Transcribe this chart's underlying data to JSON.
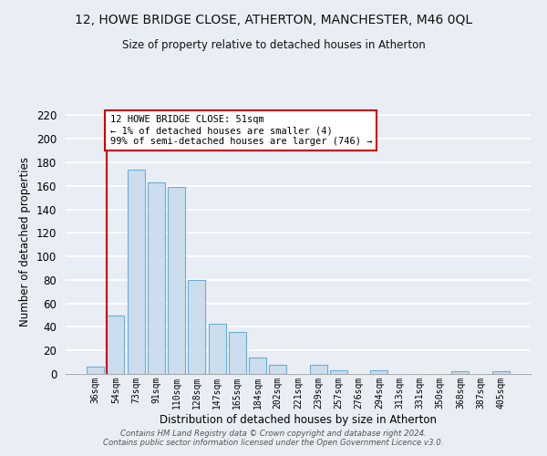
{
  "title": "12, HOWE BRIDGE CLOSE, ATHERTON, MANCHESTER, M46 0QL",
  "subtitle": "Size of property relative to detached houses in Atherton",
  "xlabel": "Distribution of detached houses by size in Atherton",
  "ylabel": "Number of detached properties",
  "bar_labels": [
    "36sqm",
    "54sqm",
    "73sqm",
    "91sqm",
    "110sqm",
    "128sqm",
    "147sqm",
    "165sqm",
    "184sqm",
    "202sqm",
    "221sqm",
    "239sqm",
    "257sqm",
    "276sqm",
    "294sqm",
    "313sqm",
    "331sqm",
    "350sqm",
    "368sqm",
    "387sqm",
    "405sqm"
  ],
  "bar_values": [
    6,
    50,
    174,
    163,
    159,
    80,
    43,
    36,
    14,
    8,
    0,
    8,
    3,
    0,
    3,
    0,
    0,
    0,
    2,
    0,
    2
  ],
  "bar_color": "#ccdded",
  "bar_edge_color": "#6baed6",
  "ylim": [
    0,
    225
  ],
  "yticks": [
    0,
    20,
    40,
    60,
    80,
    100,
    120,
    140,
    160,
    180,
    200,
    220
  ],
  "annotation_title": "12 HOWE BRIDGE CLOSE: 51sqm",
  "annotation_line1": "← 1% of detached houses are smaller (4)",
  "annotation_line2": "99% of semi-detached houses are larger (746) →",
  "annotation_box_color": "#ffffff",
  "annotation_box_edge": "#cc0000",
  "footer_line1": "Contains HM Land Registry data © Crown copyright and database right 2024.",
  "footer_line2": "Contains public sector information licensed under the Open Government Licence v3.0.",
  "background_color": "#e8eef4",
  "grid_color": "#ffffff",
  "subject_line_color": "#cc0000",
  "figsize": [
    6.0,
    5.0
  ],
  "dpi": 100
}
